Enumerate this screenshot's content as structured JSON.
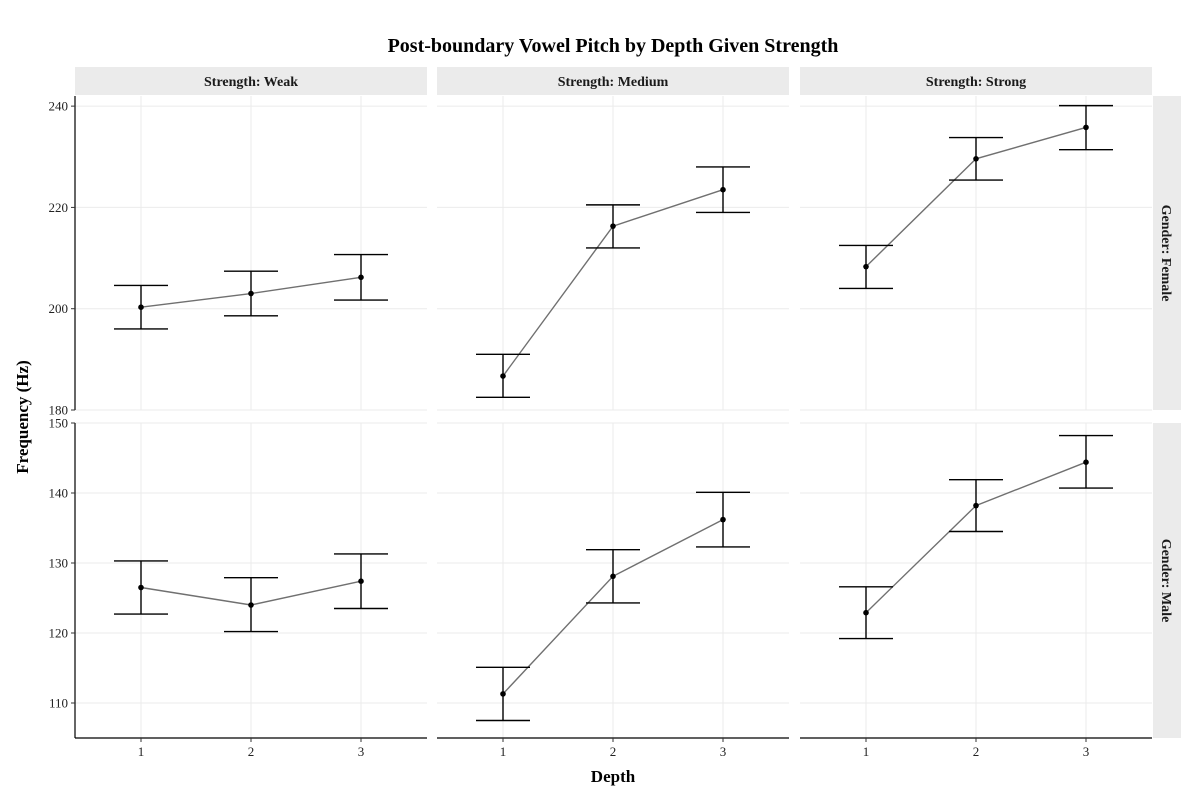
{
  "chart_data": {
    "type": "line",
    "title": "Post-boundary Vowel Pitch by Depth Given Strength",
    "xlabel": "Depth",
    "ylabel": "Frequency (Hz)",
    "x": [
      1,
      2,
      3
    ],
    "x_tick_labels": [
      "1",
      "2",
      "3"
    ],
    "columns": [
      {
        "key": "weak",
        "label": "Strength: Weak"
      },
      {
        "key": "medium",
        "label": "Strength: Medium"
      },
      {
        "key": "strong",
        "label": "Strength: Strong"
      }
    ],
    "rows": [
      {
        "key": "female",
        "label": "Gender: Female",
        "ylim": [
          180,
          242
        ],
        "yticks": [
          180,
          200,
          220,
          240
        ],
        "ytick_labels": [
          "180",
          "200",
          "220",
          "240"
        ]
      },
      {
        "key": "male",
        "label": "Gender: Male",
        "ylim": [
          105,
          150
        ],
        "yticks": [
          110,
          120,
          130,
          140,
          150
        ],
        "ytick_labels": [
          "110",
          "120",
          "130",
          "140",
          "150"
        ]
      }
    ],
    "panels": [
      {
        "row": "female",
        "column": "weak",
        "mean": [
          200.3,
          203.0,
          206.2
        ],
        "lower": [
          196.0,
          198.6,
          201.7
        ],
        "upper": [
          204.6,
          207.4,
          210.7
        ]
      },
      {
        "row": "female",
        "column": "medium",
        "mean": [
          186.7,
          216.3,
          223.5
        ],
        "lower": [
          182.5,
          212.0,
          219.0
        ],
        "upper": [
          191.0,
          220.5,
          228.0
        ]
      },
      {
        "row": "female",
        "column": "strong",
        "mean": [
          208.3,
          229.6,
          235.8
        ],
        "lower": [
          204.0,
          225.4,
          231.4
        ],
        "upper": [
          212.5,
          233.8,
          240.1
        ]
      },
      {
        "row": "male",
        "column": "weak",
        "mean": [
          126.5,
          124.0,
          127.4
        ],
        "lower": [
          122.7,
          120.2,
          123.5
        ],
        "upper": [
          130.3,
          127.9,
          131.3
        ]
      },
      {
        "row": "male",
        "column": "medium",
        "mean": [
          111.3,
          128.1,
          136.2
        ],
        "lower": [
          107.5,
          124.3,
          132.3
        ],
        "upper": [
          115.1,
          131.9,
          140.1
        ]
      },
      {
        "row": "male",
        "column": "strong",
        "mean": [
          122.9,
          138.2,
          144.4
        ],
        "lower": [
          119.2,
          134.5,
          140.7
        ],
        "upper": [
          126.6,
          141.9,
          148.2
        ]
      }
    ],
    "grid": true,
    "legend": "none"
  }
}
